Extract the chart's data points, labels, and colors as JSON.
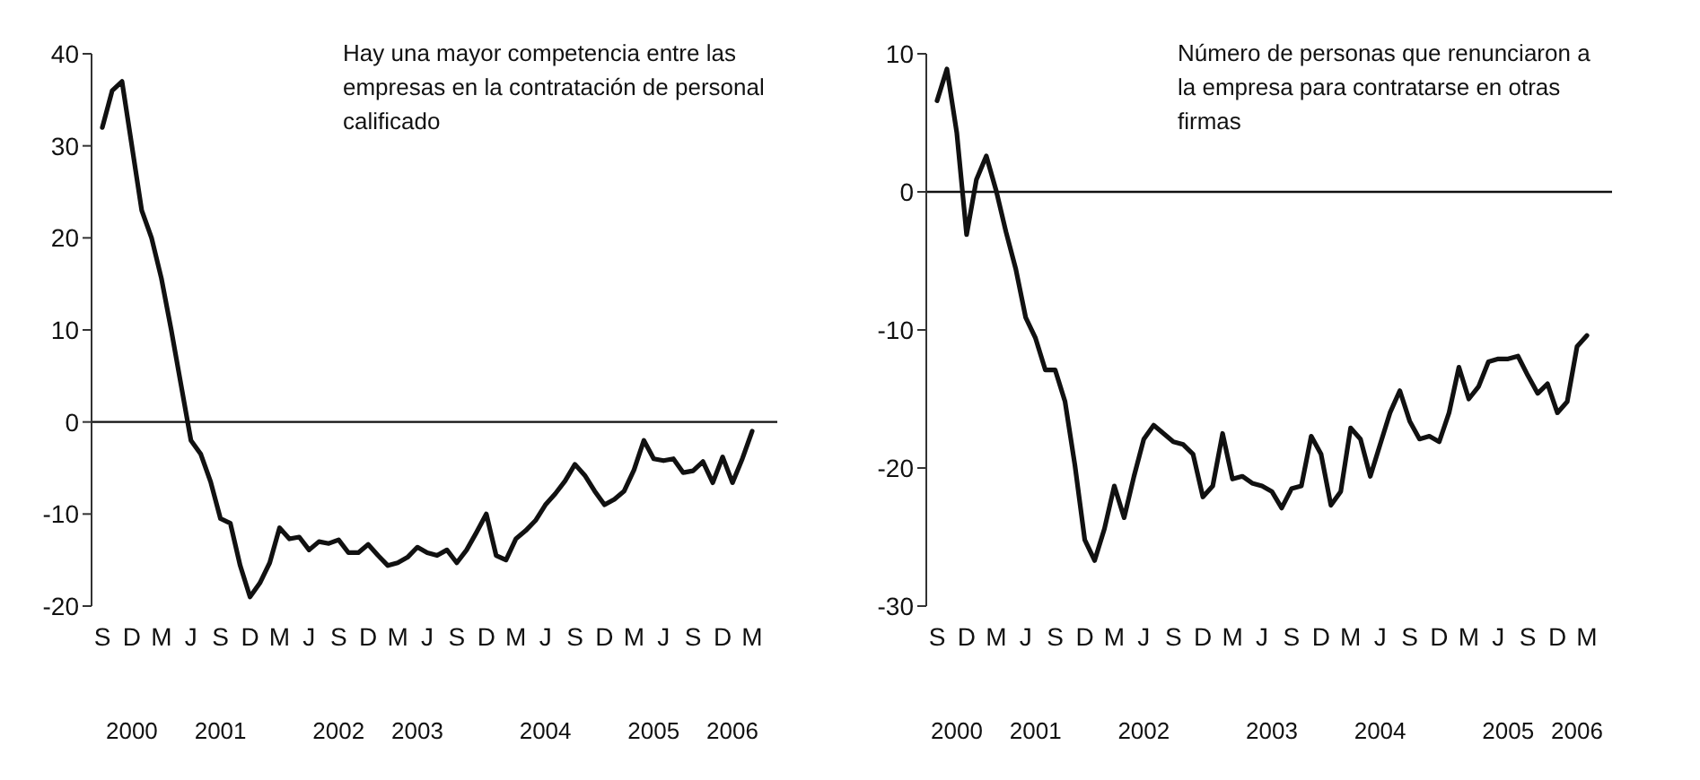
{
  "chart_data": [
    {
      "type": "line",
      "title": "Hay una mayor competencia entre las empresas en la contratación de personal calificado",
      "categories": [
        "S",
        null,
        null,
        "D",
        null,
        null,
        "M",
        null,
        null,
        "J",
        null,
        null,
        "S",
        null,
        null,
        "D",
        null,
        null,
        "M",
        null,
        null,
        "J",
        null,
        null,
        "S",
        null,
        null,
        "D",
        null,
        null,
        "M",
        null,
        null,
        "J",
        null,
        null,
        "S",
        null,
        null,
        "D",
        null,
        null,
        "M",
        null,
        null,
        "J",
        null,
        null,
        "S",
        null,
        null,
        "D",
        null,
        null,
        "M",
        null,
        null,
        "J",
        null,
        null,
        "S",
        null,
        null,
        "D",
        null,
        null,
        "M"
      ],
      "series": [
        {
          "color": "#111111",
          "values": [
            32,
            36,
            37,
            30,
            23,
            20,
            15.6,
            10,
            4,
            -2,
            -3.5,
            -6.5,
            -10.5,
            -11,
            -15.6,
            -19,
            -17.5,
            -15.3,
            -11.5,
            -12.7,
            -12.5,
            -13.9,
            -13,
            -13.2,
            -12.8,
            -14.2,
            -14.2,
            -13.3,
            -14.5,
            -15.6,
            -15.3,
            -14.7,
            -13.6,
            -14.2,
            -14.5,
            -13.9,
            -15.3,
            -13.9,
            -12,
            -10,
            -14.5,
            -15,
            -12.7,
            -11.8,
            -10.7,
            -9,
            -7.8,
            -6.4,
            -4.6,
            -5.8,
            -7.5,
            -9,
            -8.4,
            -7.5,
            -5.2,
            -2,
            -4,
            -4.2,
            -4,
            -5.5,
            -5.3,
            -4.3,
            -6.6,
            -3.8,
            -6.6,
            -4,
            -1
          ]
        }
      ],
      "ylim": [
        -20,
        40
      ],
      "yticks": [
        -20,
        -10,
        0,
        10,
        20,
        30,
        40
      ],
      "ref_lines": [
        {
          "axis": "y",
          "value": 0,
          "color": "#111111"
        }
      ],
      "annotations": [
        "2000",
        "2001",
        "2002",
        "2003",
        "2004",
        "2005",
        "2006"
      ],
      "grid": false,
      "legend": false,
      "marker": "none",
      "line_style": "solid"
    },
    {
      "type": "line",
      "title": "Número de personas que renunciaron a la empresa para contratarse en otras firmas",
      "categories": [
        "S",
        null,
        null,
        "D",
        null,
        null,
        "M",
        null,
        null,
        "J",
        null,
        null,
        "S",
        null,
        null,
        "D",
        null,
        null,
        "M",
        null,
        null,
        "J",
        null,
        null,
        "S",
        null,
        null,
        "D",
        null,
        null,
        "M",
        null,
        null,
        "J",
        null,
        null,
        "S",
        null,
        null,
        "D",
        null,
        null,
        "M",
        null,
        null,
        "J",
        null,
        null,
        "S",
        null,
        null,
        "D",
        null,
        null,
        "M",
        null,
        null,
        "J",
        null,
        null,
        "S",
        null,
        null,
        "D",
        null,
        null,
        "M"
      ],
      "series": [
        {
          "color": "#111111",
          "values": [
            6.6,
            8.9,
            4.3,
            -3.1,
            0.9,
            2.6,
            0.1,
            -2.9,
            -5.6,
            -9.1,
            -10.6,
            -12.9,
            -12.9,
            -15.2,
            -19.8,
            -25.2,
            -26.7,
            -24.4,
            -21.3,
            -23.6,
            -20.6,
            -17.9,
            -16.9,
            -17.5,
            -18.1,
            -18.3,
            -19,
            -22.1,
            -21.3,
            -17.5,
            -20.8,
            -20.6,
            -21.1,
            -21.3,
            -21.7,
            -22.9,
            -21.5,
            -21.3,
            -17.7,
            -19,
            -22.7,
            -21.7,
            -17.1,
            -17.9,
            -20.6,
            -18.3,
            -16,
            -14.4,
            -16.6,
            -17.9,
            -17.7,
            -18.1,
            -16,
            -12.7,
            -15,
            -14.1,
            -12.3,
            -12.1,
            -12.1,
            -11.9,
            -13.3,
            -14.6,
            -13.9,
            -16,
            -15.2,
            -11.2,
            -10.4
          ]
        }
      ],
      "ylim": [
        -30,
        10
      ],
      "yticks": [
        -30,
        -20,
        -10,
        0,
        10
      ],
      "ref_lines": [
        {
          "axis": "y",
          "value": 0,
          "color": "#111111"
        }
      ],
      "annotations": [
        "2000",
        "2001",
        "2002",
        "2003",
        "2004",
        "2005",
        "2006"
      ],
      "grid": false,
      "legend": false,
      "marker": "none",
      "line_style": "solid"
    }
  ]
}
